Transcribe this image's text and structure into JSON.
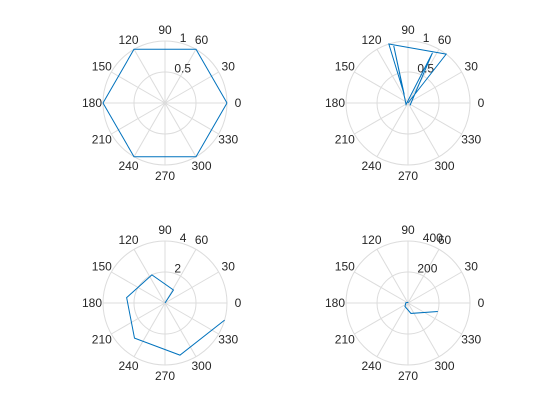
{
  "chart_data": [
    {
      "type": "polar-line",
      "title": "",
      "theta_ticks_deg": [
        0,
        30,
        60,
        90,
        120,
        150,
        180,
        210,
        240,
        270,
        300,
        330
      ],
      "theta_tick_labels": [
        "0",
        "30",
        "60",
        "90",
        "120",
        "150",
        "180",
        "210",
        "240",
        "270",
        "300",
        "330"
      ],
      "rlim": [
        0,
        1
      ],
      "r_ticks": [
        0.5,
        1
      ],
      "r_tick_labels": [
        "0.5",
        "1"
      ],
      "grid": true,
      "series": [
        {
          "theta_deg": [
            0,
            60,
            120,
            180,
            240,
            300,
            360
          ],
          "r": [
            1,
            1,
            1,
            1,
            1,
            1,
            1
          ]
        }
      ]
    },
    {
      "type": "polar-line",
      "title": "",
      "theta_ticks_deg": [
        0,
        30,
        60,
        90,
        120,
        150,
        180,
        210,
        240,
        270,
        300,
        330
      ],
      "theta_tick_labels": [
        "0",
        "30",
        "60",
        "90",
        "120",
        "150",
        "180",
        "210",
        "240",
        "270",
        "300",
        "330"
      ],
      "rlim": [
        0,
        1
      ],
      "r_ticks": [
        0.5,
        1
      ],
      "r_tick_labels": [
        "0.5",
        "1"
      ],
      "grid": true,
      "series": [
        {
          "theta_deg": [
            0,
            52,
            108,
            114,
            104,
            218,
            64,
            310
          ],
          "r": [
            0,
            1.0,
            1.0,
            0.15,
            0.95,
            0.04,
            0.9,
            0.05
          ]
        }
      ]
    },
    {
      "type": "polar-line",
      "title": "",
      "theta_ticks_deg": [
        0,
        30,
        60,
        90,
        120,
        150,
        180,
        210,
        240,
        270,
        300,
        330
      ],
      "theta_tick_labels": [
        "0",
        "30",
        "60",
        "90",
        "120",
        "150",
        "180",
        "210",
        "240",
        "270",
        "300",
        "330"
      ],
      "rlim": [
        0,
        4
      ],
      "r_ticks": [
        2,
        4
      ],
      "r_tick_labels": [
        "2",
        "4"
      ],
      "grid": true,
      "series": [
        {
          "theta_deg": [
            0,
            57,
            115,
            172,
            229,
            286,
            344
          ],
          "r": [
            0,
            1,
            2,
            2.5,
            3,
            3.5,
            4
          ]
        }
      ]
    },
    {
      "type": "polar-line",
      "title": "",
      "theta_ticks_deg": [
        0,
        30,
        60,
        90,
        120,
        150,
        180,
        210,
        240,
        270,
        300,
        330
      ],
      "theta_tick_labels": [
        "0",
        "30",
        "60",
        "90",
        "120",
        "150",
        "180",
        "210",
        "240",
        "270",
        "300",
        "330"
      ],
      "rlim": [
        0,
        400
      ],
      "r_ticks": [
        200,
        400
      ],
      "r_tick_labels": [
        "200",
        "400"
      ],
      "grid": true,
      "series": [
        {
          "theta_deg": [
            0,
            57,
            115,
            172,
            229,
            286,
            344
          ],
          "r": [
            0,
            1,
            4,
            14,
            30,
            70,
            200
          ]
        }
      ]
    }
  ],
  "colors": {
    "series": "#0072BD",
    "grid": "#dcdcdc",
    "text": "#262626",
    "background": "#ffffff"
  }
}
